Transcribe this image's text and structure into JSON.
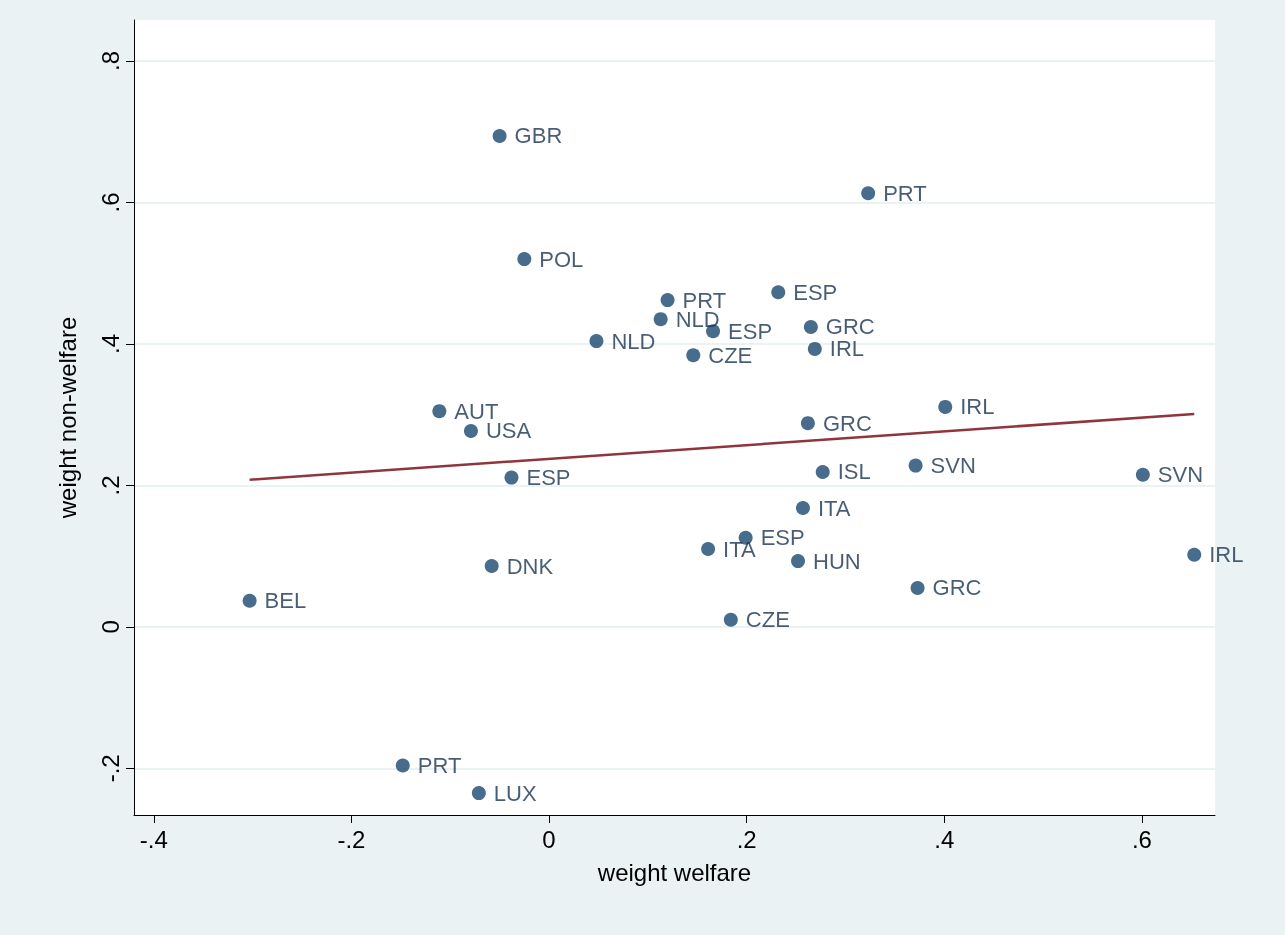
{
  "chart_data": {
    "type": "scatter",
    "xlabel": "weight welfare",
    "ylabel": "weight non-welfare",
    "xlim": [
      -0.42,
      0.674
    ],
    "ylim": [
      -0.266,
      0.858
    ],
    "xticks": [
      {
        "value": -0.4,
        "label": "-.4"
      },
      {
        "value": -0.2,
        "label": "-.2"
      },
      0,
      {
        "value": 0.2,
        "label": ".2"
      },
      {
        "value": 0.4,
        "label": ".4"
      },
      {
        "value": 0.6,
        "label": ".6"
      }
    ],
    "yticks": [
      {
        "value": -0.2,
        "label": "-.2"
      },
      0,
      {
        "value": 0.2,
        "label": ".2"
      },
      {
        "value": 0.4,
        "label": ".4"
      },
      {
        "value": 0.6,
        "label": ".6"
      },
      {
        "value": 0.8,
        "label": ".8"
      }
    ],
    "grid": "y",
    "marker": "circle",
    "series": [
      {
        "color": "#1a476f",
        "x": [
          -0.05,
          0.323,
          -0.025,
          0.12,
          0.232,
          0.113,
          0.166,
          0.265,
          0.048,
          0.146,
          0.269,
          -0.111,
          -0.079,
          0.401,
          0.262,
          -0.038,
          0.277,
          0.371,
          0.601,
          0.257,
          0.199,
          0.161,
          0.252,
          0.653,
          0.373,
          -0.058,
          -0.303,
          0.184,
          -0.148,
          -0.071
        ],
        "values": [
          0.694,
          0.613,
          0.52,
          0.462,
          0.473,
          0.435,
          0.418,
          0.424,
          0.404,
          0.384,
          0.393,
          0.305,
          0.277,
          0.311,
          0.288,
          0.211,
          0.219,
          0.228,
          0.215,
          0.168,
          0.126,
          0.11,
          0.093,
          0.102,
          0.055,
          0.086,
          0.037,
          0.01,
          -0.196,
          -0.235
        ],
        "value_labels": [
          "GBR",
          "PRT",
          "POL",
          "PRT",
          "ESP",
          "NLD",
          "ESP",
          "GRC",
          "NLD",
          "CZE",
          "IRL",
          "AUT",
          "USA",
          "IRL",
          "GRC",
          "ESP",
          "ISL",
          "SVN",
          "SVN",
          "ITA",
          "ESP",
          "ITA",
          "HUN",
          "IRL",
          "GRC",
          "DNK",
          "BEL",
          "CZE",
          "PRT",
          "LUX"
        ]
      },
      {
        "type": "line",
        "color": "#90353b",
        "marker": "none",
        "x": [
          -0.303,
          0.653
        ],
        "values": [
          0.208,
          0.301
        ]
      }
    ]
  }
}
